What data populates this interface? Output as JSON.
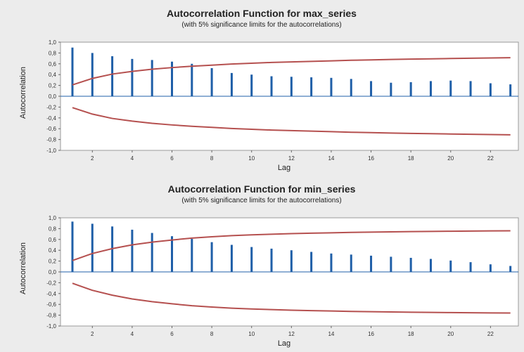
{
  "charts": [
    {
      "type": "bar",
      "title": "Autocorrelation Function for max_series",
      "subtitle": "(with 5% significance limits for the autocorrelations)",
      "xlabel": "Lag",
      "ylabel": "Autocorrelation",
      "ylim": [
        -1.0,
        1.0
      ],
      "yticks": [
        "1,0",
        "0,8",
        "0,6",
        "0,4",
        "0,2",
        "0,0",
        "-0,2",
        "-0,4",
        "-0,6",
        "-0,8",
        "-1,0"
      ],
      "ytick_values": [
        1.0,
        0.8,
        0.6,
        0.4,
        0.2,
        0.0,
        -0.2,
        -0.4,
        -0.6,
        -0.8,
        -1.0
      ],
      "xticks": [
        "2",
        "4",
        "6",
        "8",
        "10",
        "12",
        "14",
        "16",
        "18",
        "20",
        "22"
      ],
      "xtick_values": [
        2,
        4,
        6,
        8,
        10,
        12,
        14,
        16,
        18,
        20,
        22
      ],
      "lags": [
        1,
        2,
        3,
        4,
        5,
        6,
        7,
        8,
        9,
        10,
        11,
        12,
        13,
        14,
        15,
        16,
        17,
        18,
        19,
        20,
        21,
        22,
        23
      ],
      "values": [
        0.9,
        0.8,
        0.74,
        0.69,
        0.67,
        0.64,
        0.6,
        0.52,
        0.43,
        0.4,
        0.37,
        0.36,
        0.35,
        0.34,
        0.32,
        0.28,
        0.25,
        0.26,
        0.28,
        0.29,
        0.28,
        0.24,
        0.22
      ],
      "upper_limit": [
        0.21,
        0.33,
        0.41,
        0.46,
        0.5,
        0.53,
        0.555,
        0.575,
        0.595,
        0.61,
        0.625,
        0.635,
        0.645,
        0.655,
        0.665,
        0.672,
        0.68,
        0.686,
        0.692,
        0.698,
        0.703,
        0.708,
        0.712
      ],
      "bar_color": "#1f5fa8",
      "limit_color": "#b5504f"
    },
    {
      "type": "bar",
      "title": "Autocorrelation Function for min_series",
      "subtitle": "(with 5% significance limits for the autocorrelations)",
      "xlabel": "Lag",
      "ylabel": "Autocorrelation",
      "ylim": [
        -1.0,
        1.0
      ],
      "yticks": [
        "1,0",
        "0,8",
        "0,6",
        "0,4",
        "0,2",
        "0,0",
        "-0,2",
        "-0,4",
        "-0,6",
        "-0,8",
        "-1,0"
      ],
      "ytick_values": [
        1.0,
        0.8,
        0.6,
        0.4,
        0.2,
        0.0,
        -0.2,
        -0.4,
        -0.6,
        -0.8,
        -1.0
      ],
      "xticks": [
        "2",
        "4",
        "6",
        "8",
        "10",
        "12",
        "14",
        "16",
        "18",
        "20",
        "22"
      ],
      "xtick_values": [
        2,
        4,
        6,
        8,
        10,
        12,
        14,
        16,
        18,
        20,
        22
      ],
      "lags": [
        1,
        2,
        3,
        4,
        5,
        6,
        7,
        8,
        9,
        10,
        11,
        12,
        13,
        14,
        15,
        16,
        17,
        18,
        19,
        20,
        21,
        22,
        23
      ],
      "values": [
        0.93,
        0.89,
        0.84,
        0.78,
        0.72,
        0.66,
        0.61,
        0.55,
        0.5,
        0.46,
        0.43,
        0.4,
        0.37,
        0.34,
        0.32,
        0.3,
        0.28,
        0.26,
        0.24,
        0.21,
        0.18,
        0.14,
        0.11
      ],
      "upper_limit": [
        0.21,
        0.34,
        0.43,
        0.5,
        0.55,
        0.59,
        0.625,
        0.65,
        0.67,
        0.685,
        0.697,
        0.707,
        0.716,
        0.723,
        0.73,
        0.735,
        0.74,
        0.745,
        0.749,
        0.752,
        0.755,
        0.758,
        0.76
      ],
      "bar_color": "#1f5fa8",
      "limit_color": "#b5504f"
    }
  ]
}
